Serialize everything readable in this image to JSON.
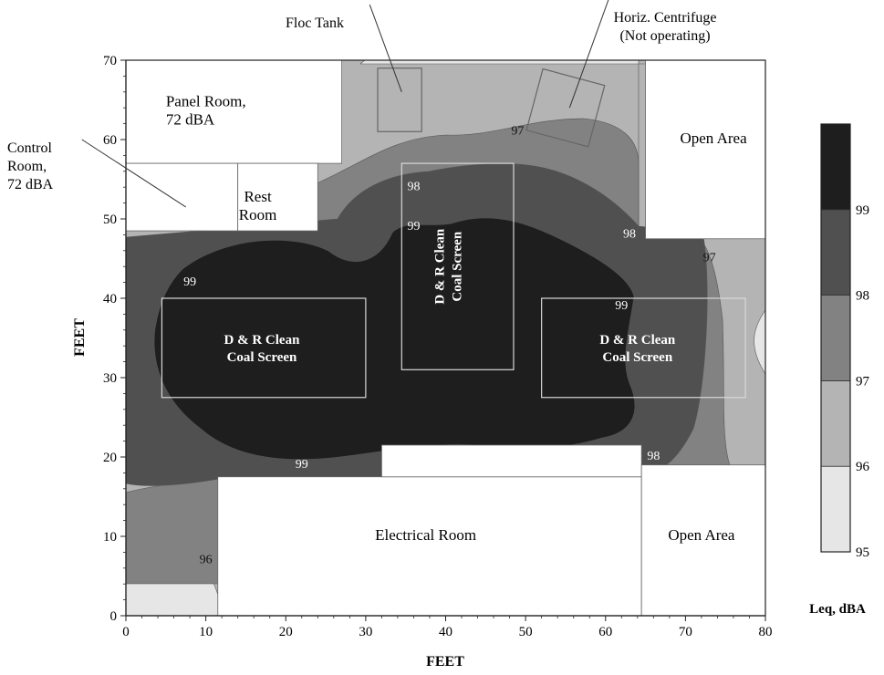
{
  "chart_data": {
    "type": "heatmap",
    "title": "",
    "xlabel": "FEET",
    "ylabel": "FEET",
    "xlim": [
      0,
      80
    ],
    "ylim": [
      0,
      70
    ],
    "x_ticks": [
      0,
      10,
      20,
      30,
      40,
      50,
      60,
      70,
      80
    ],
    "y_ticks": [
      0,
      10,
      20,
      30,
      40,
      50,
      60,
      70
    ],
    "colorbar": {
      "label": "Leq, dBA",
      "ticks": [
        95,
        96,
        97,
        98,
        99
      ],
      "min": 95,
      "max": 100,
      "band_colors": [
        "#e6e6e6",
        "#b4b4b4",
        "#828282",
        "#505050",
        "#1e1e1e"
      ]
    },
    "contour_labels": [
      {
        "text": "97",
        "x": 49,
        "y": 61
      },
      {
        "text": "98",
        "x": 36,
        "y": 54
      },
      {
        "text": "99",
        "x": 36,
        "y": 49
      },
      {
        "text": "98",
        "x": 63,
        "y": 48
      },
      {
        "text": "97",
        "x": 73,
        "y": 45
      },
      {
        "text": "99",
        "x": 8,
        "y": 42
      },
      {
        "text": "99",
        "x": 62,
        "y": 39
      },
      {
        "text": "99",
        "x": 22,
        "y": 19
      },
      {
        "text": "98",
        "x": 66,
        "y": 20
      },
      {
        "text": "96",
        "x": 10,
        "y": 7
      }
    ],
    "areas": [
      {
        "label": "Panel Room,\n72 dBA",
        "x": [
          0,
          27
        ],
        "y": [
          57,
          70
        ],
        "label_at": [
          5,
          63.5
        ]
      },
      {
        "label": "",
        "x": [
          0,
          14
        ],
        "y": [
          48.5,
          57
        ]
      },
      {
        "label": "Rest\nRoom",
        "x": [
          14,
          24
        ],
        "y": [
          48.5,
          57
        ],
        "label_at": [
          16.5,
          51.5
        ]
      },
      {
        "label": "Open Area",
        "x": [
          65,
          80
        ],
        "y": [
          47.5,
          70
        ],
        "label_at": [
          73.5,
          60
        ]
      },
      {
        "label": "Electrical Room",
        "x": [
          11.5,
          64.5
        ],
        "y": [
          0,
          17.5
        ],
        "label_at": [
          37.5,
          10
        ]
      },
      {
        "label": "",
        "x": [
          32,
          64.5
        ],
        "y": [
          17.5,
          21.5
        ]
      },
      {
        "label": "Open Area",
        "x": [
          64.5,
          80
        ],
        "y": [
          0,
          19
        ],
        "label_at": [
          72,
          10
        ]
      }
    ],
    "equipment": [
      {
        "label": "D & R Clean\nCoal Screen",
        "x": [
          4.5,
          30
        ],
        "y": [
          27.5,
          40
        ],
        "label_at": [
          17,
          33.5
        ],
        "rotated": false
      },
      {
        "label": "D & R Clean\nCoal Screen",
        "x": [
          34.5,
          48.5
        ],
        "y": [
          31,
          57
        ],
        "label_at": [
          40.5,
          44
        ],
        "rotated": true
      },
      {
        "label": "D & R Clean\nCoal Screen",
        "x": [
          52,
          77.5
        ],
        "y": [
          27.5,
          40
        ],
        "label_at": [
          64,
          33.5
        ],
        "rotated": false
      },
      {
        "label": "",
        "x": [
          31.5,
          37
        ],
        "y": [
          61,
          69
        ],
        "rotated": false
      },
      {
        "label": "",
        "x": [
          51,
          59
        ],
        "y": [
          60,
          68
        ],
        "rotated": false
      }
    ],
    "callouts": [
      {
        "label": "Floc Tank",
        "text_px": [
          345,
          30
        ],
        "line": [
          [
            34.5,
            66
          ],
          [
            30.5,
            77
          ]
        ]
      },
      {
        "label": "Horiz. Centrifuge\n(Not operating)",
        "text_px": [
          729,
          24
        ],
        "line": [
          [
            55.5,
            64
          ],
          [
            60.5,
            78
          ]
        ]
      },
      {
        "label": "Control\nRoom,\n72 dBA",
        "text_px": [
          8,
          167
        ],
        "line": [
          [
            7.5,
            51.5
          ],
          [
            -5.5,
            60
          ]
        ]
      }
    ]
  }
}
